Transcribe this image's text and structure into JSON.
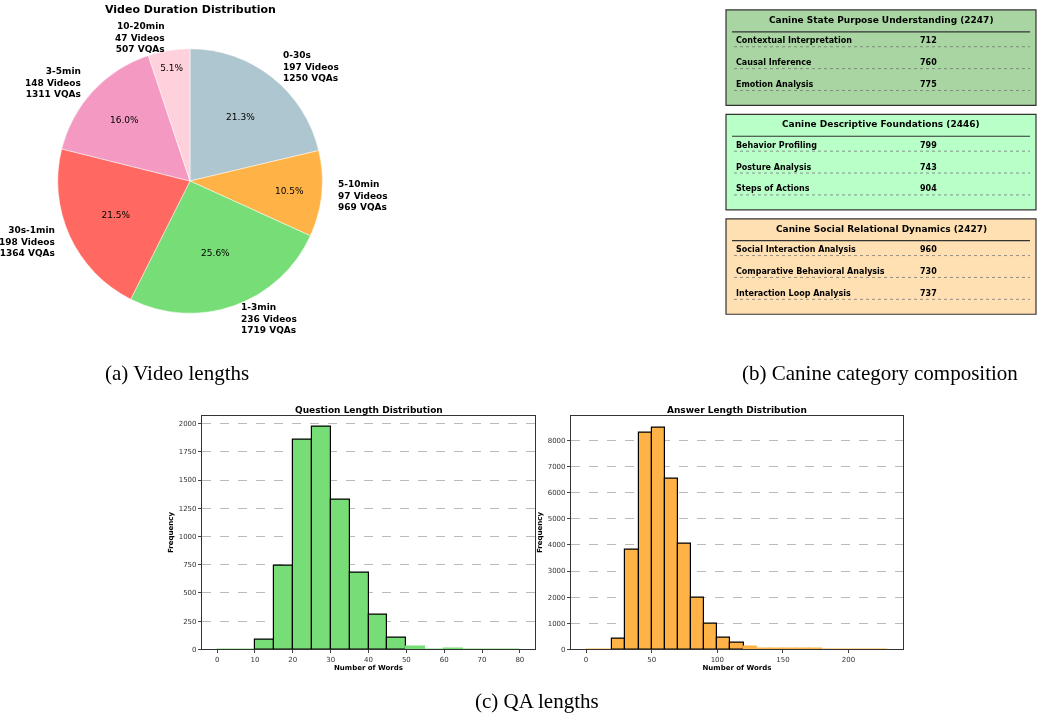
{
  "chart_data": [
    {
      "type": "pie",
      "title": "Video Duration Distribution",
      "categories": [
        "0-30s\n197 Videos\n1250 VQAs",
        "5-10min\n97 Videos\n969 VQAs",
        "1-3min\n236 Videos\n1719 VQAs",
        "30s-1min\n198 Videos\n1364 VQAs",
        "3-5min\n148 Videos\n1311 VQAs",
        "10-20min\n47 Videos\n507 VQAs"
      ],
      "values": [
        21.3,
        10.5,
        25.6,
        21.5,
        16.0,
        5.1
      ],
      "value_labels": [
        "21.3%",
        "10.5%",
        "25.6%",
        "21.5%",
        "16.0%",
        "5.1%"
      ],
      "colors": [
        "#aec6cf",
        "#ffb347",
        "#77dd77",
        "#ff6961",
        "#f49ac2",
        "#ffd1dc"
      ],
      "annotations": [
        "(a) Video lengths"
      ]
    },
    {
      "type": "other",
      "annotations": [
        "Canine State Purpose Understanding (2247)",
        "Contextual Interpretation",
        "712",
        "Causal Inference",
        "760",
        "Emotion Analysis",
        "775",
        "Canine Descriptive Foundations (2446)",
        "Behavior Profiling",
        "799",
        "Posture Analysis",
        "743",
        "Steps of Actions",
        "904",
        "Canine Social Relational Dynamics (2427)",
        "Social Interaction Analysis",
        "960",
        "Comparative Behavioral Analysis",
        "730",
        "Interaction Loop Analysis",
        "737",
        "(b) Canine category composition"
      ]
    },
    {
      "type": "histogram",
      "title": "Question Length Distribution",
      "xlabel": "Number of Words",
      "ylabel": "Frequency",
      "bins": [
        0,
        5,
        10,
        15,
        20,
        25,
        30,
        35,
        40,
        45,
        50,
        55,
        60,
        65,
        70,
        75,
        80
      ],
      "values": [
        0,
        0,
        85,
        740,
        1860,
        1970,
        1325,
        680,
        310,
        105,
        20,
        0,
        10,
        0,
        0,
        0
      ],
      "color": "#77dd77",
      "xlim": [
        -4,
        84
      ],
      "ylim": [
        0,
        2070
      ],
      "xticks": [
        0,
        10,
        20,
        30,
        40,
        50,
        60,
        70,
        80
      ],
      "yticks": [
        0,
        250,
        500,
        750,
        1000,
        1250,
        1500,
        1750,
        2000
      ],
      "grid": "y",
      "annotations": [
        "(c) QA lengths"
      ]
    },
    {
      "type": "histogram",
      "title": "Answer Length Distribution",
      "xlabel": "Number of Words",
      "ylabel": "Frequency",
      "bins": [
        0,
        10,
        20,
        30,
        40,
        50,
        60,
        70,
        80,
        90,
        100,
        110,
        120,
        130,
        140,
        150,
        160,
        170,
        180,
        190,
        200,
        210,
        220,
        230
      ],
      "values": [
        0,
        0,
        420,
        3800,
        8280,
        8500,
        6520,
        4030,
        1970,
        970,
        440,
        250,
        110,
        40,
        20,
        20,
        20,
        20,
        0,
        0,
        0,
        0,
        0
      ],
      "color": "#ffb347",
      "xlim": [
        -11.5,
        241.5
      ],
      "ylim": [
        0,
        8950
      ],
      "xticks": [
        0,
        50,
        100,
        150,
        200
      ],
      "yticks": [
        0,
        1000,
        2000,
        3000,
        4000,
        5000,
        6000,
        7000,
        8000
      ],
      "grid": "y"
    }
  ]
}
